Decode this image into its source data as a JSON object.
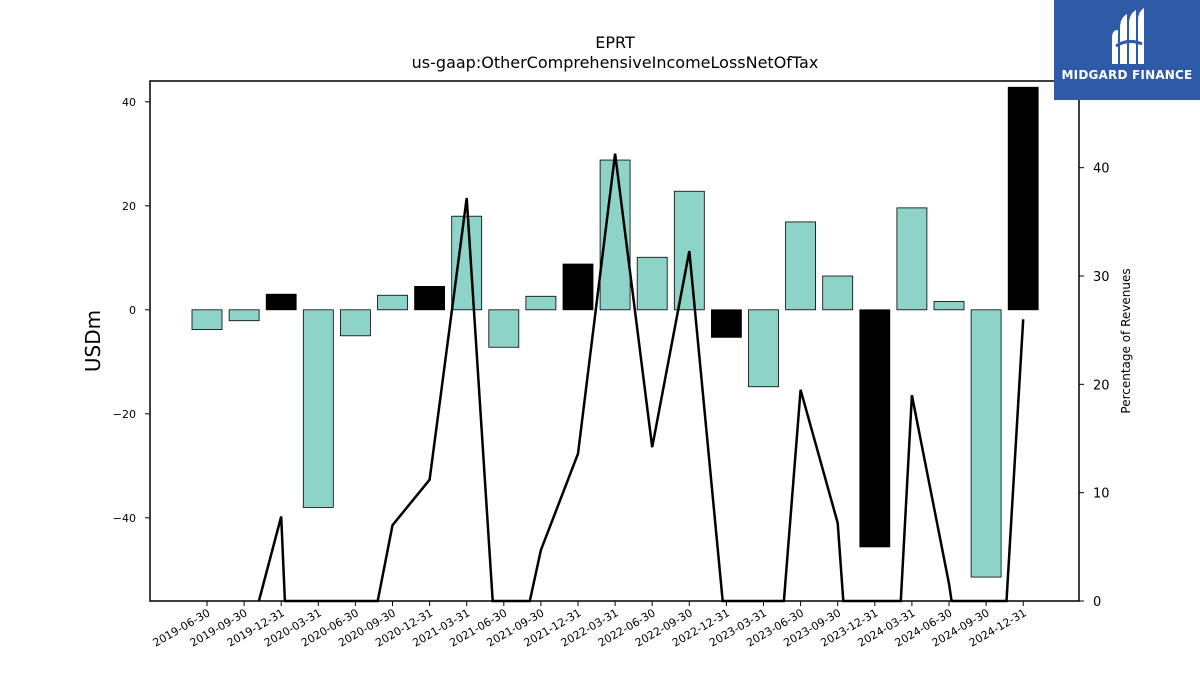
{
  "logo": {
    "text": "MIDGARD FINANCE",
    "icon": "midgard-logo-icon",
    "background": "#2f5aa8"
  },
  "chart_data": {
    "type": "bar",
    "title": "EPRT",
    "subtitle": "us-gaap:OtherComprehensiveIncomeLossNetOfTax",
    "ylabel": "USDm",
    "y2label": "Percentage of Revenues",
    "ylim": [
      -56,
      44
    ],
    "y2lim": [
      0,
      48
    ],
    "yticks": [
      -40,
      -20,
      0,
      20,
      40
    ],
    "y2ticks": [
      0,
      10,
      20,
      30,
      40
    ],
    "categories": [
      "2019-06-30",
      "2019-09-30",
      "2019-12-31",
      "2020-03-31",
      "2020-06-30",
      "2020-09-30",
      "2020-12-31",
      "2021-03-31",
      "2021-06-30",
      "2021-09-30",
      "2021-12-31",
      "2022-03-31",
      "2022-06-30",
      "2022-09-30",
      "2022-12-31",
      "2023-03-31",
      "2023-06-30",
      "2023-09-30",
      "2023-12-31",
      "2024-03-31",
      "2024-06-30",
      "2024-09-30",
      "2024-12-31"
    ],
    "series": [
      {
        "type": "bar",
        "values": [
          -3.8,
          -2.1,
          3.0,
          -38.0,
          -5.0,
          2.8,
          4.5,
          18.0,
          -7.2,
          2.6,
          8.8,
          28.8,
          10.1,
          22.8,
          -5.3,
          -14.8,
          16.9,
          6.5,
          -45.6,
          19.6,
          1.6,
          -51.4,
          42.8
        ],
        "colors": [
          "#8dd3c7",
          "#8dd3c7",
          "#000000",
          "#8dd3c7",
          "#8dd3c7",
          "#8dd3c7",
          "#000000",
          "#8dd3c7",
          "#8dd3c7",
          "#8dd3c7",
          "#000000",
          "#8dd3c7",
          "#8dd3c7",
          "#8dd3c7",
          "#000000",
          "#8dd3c7",
          "#8dd3c7",
          "#8dd3c7",
          "#000000",
          "#8dd3c7",
          "#8dd3c7",
          "#8dd3c7",
          "#000000"
        ]
      },
      {
        "type": "line",
        "axis": "right",
        "color": "#000000",
        "points": [
          [
            1.4,
            0
          ],
          [
            2.0,
            7.8
          ],
          [
            2.1,
            0
          ],
          [
            4.6,
            0
          ],
          [
            5.0,
            7.0
          ],
          [
            6.0,
            11.2
          ],
          [
            7.0,
            37.2
          ],
          [
            7.7,
            0
          ],
          [
            8.7,
            0
          ],
          [
            9.0,
            4.7
          ],
          [
            10.0,
            13.6
          ],
          [
            11.0,
            41.3
          ],
          [
            12.0,
            14.2
          ],
          [
            13.0,
            32.3
          ],
          [
            13.9,
            0
          ],
          [
            15.55,
            0
          ],
          [
            16.0,
            19.5
          ],
          [
            17.0,
            7.2
          ],
          [
            17.15,
            0
          ],
          [
            18.7,
            0
          ],
          [
            19.0,
            19.0
          ],
          [
            20.0,
            1.6
          ],
          [
            20.07,
            0
          ],
          [
            21.55,
            0
          ],
          [
            22.0,
            26.0
          ]
        ]
      }
    ],
    "grid": false,
    "legend": "none"
  }
}
